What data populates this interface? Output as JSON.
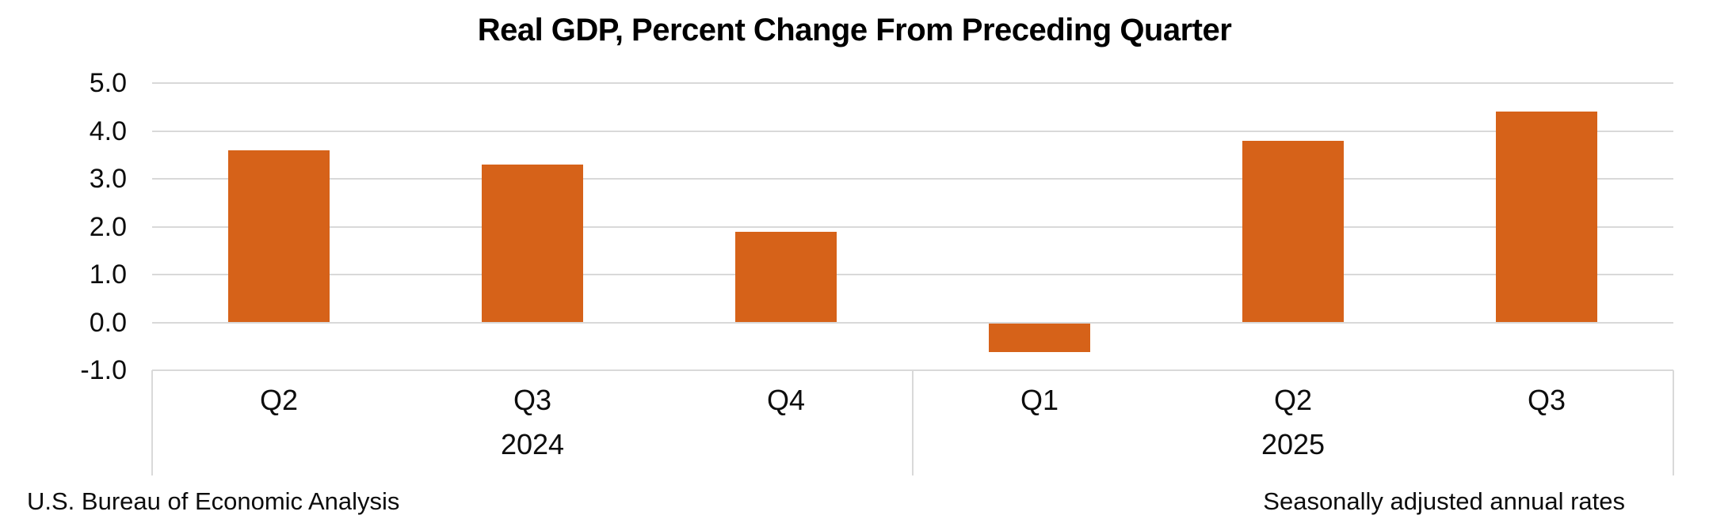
{
  "chart_data": {
    "type": "bar",
    "title": "Real GDP, Percent Change From Preceding Quarter",
    "categories": [
      "Q2",
      "Q3",
      "Q4",
      "Q1",
      "Q2",
      "Q3"
    ],
    "groups": [
      {
        "label": "2024",
        "count": 3
      },
      {
        "label": "2025",
        "count": 3
      }
    ],
    "values": [
      3.6,
      3.3,
      1.9,
      -0.6,
      3.8,
      4.4
    ],
    "ylabel": "",
    "xlabel": "",
    "ylim": [
      -1.0,
      5.0
    ],
    "yticks": [
      "5.0",
      "4.0",
      "3.0",
      "2.0",
      "1.0",
      "0.0",
      "-1.0"
    ],
    "grid": true,
    "legend_position": "none",
    "bar_color": "#D66219",
    "gridline_color": "#D9D9D9"
  },
  "footer": {
    "left": "U.S. Bureau of Economic Analysis",
    "right": "Seasonally adjusted annual rates"
  }
}
